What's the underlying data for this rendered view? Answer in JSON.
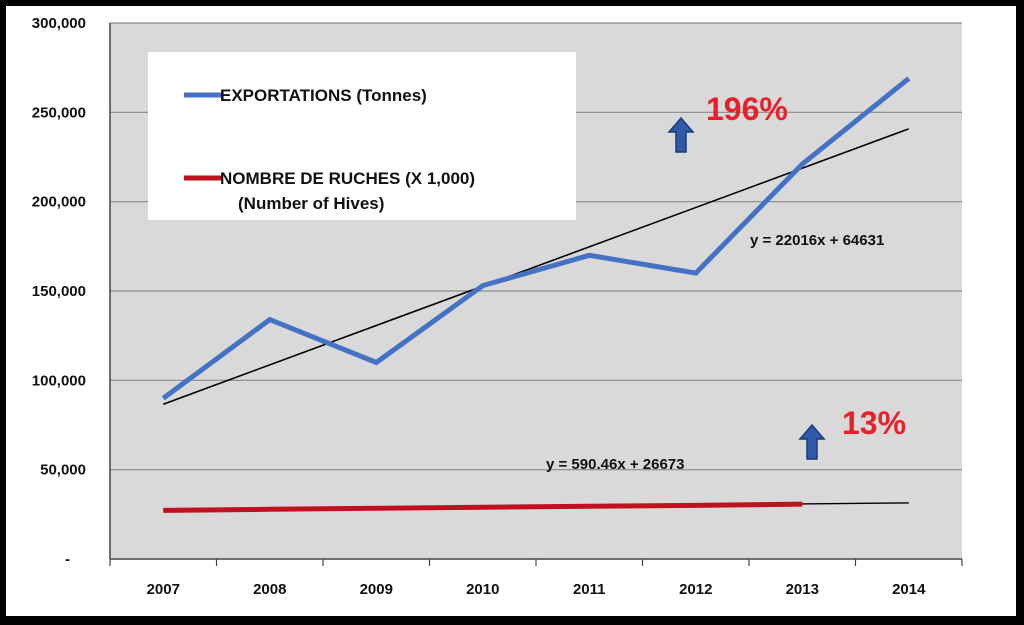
{
  "chart_data": {
    "type": "line",
    "categories": [
      "2007",
      "2008",
      "2009",
      "2010",
      "2011",
      "2012",
      "2013",
      "2014"
    ],
    "series": [
      {
        "name": "EXPORTATIONS (Tonnes)",
        "color": "#4472c4",
        "values": [
          90000,
          134000,
          110000,
          153000,
          170000,
          160000,
          221000,
          269000
        ]
      },
      {
        "name": "NOMBRE DE RUCHES (X 1,000)",
        "name_line2": "(Number of Hives)",
        "color": "#c0111f",
        "values": [
          27200,
          27800,
          28400,
          29000,
          29500,
          30000,
          30700,
          null
        ]
      }
    ],
    "trendlines": [
      {
        "equation": "y = 22016x + 64631",
        "slope": 22016,
        "intercept": 64631,
        "color": "#000000"
      },
      {
        "equation": "y = 590.46x + 26673",
        "slope": 590.46,
        "intercept": 26673,
        "color": "#000000"
      }
    ],
    "annotations": [
      {
        "text": "196%",
        "color": "#e8202a",
        "arrow": "up-arrow"
      },
      {
        "text": "13%",
        "color": "#e8202a",
        "arrow": "up-arrow"
      }
    ],
    "y_ticks": [
      "-",
      "50,000",
      "100,000",
      "150,000",
      "200,000",
      "250,000",
      "300,000"
    ],
    "ylim": [
      0,
      300000
    ],
    "grid": true,
    "legend_position": "top-left",
    "plot_background": "#d9d9d9"
  }
}
